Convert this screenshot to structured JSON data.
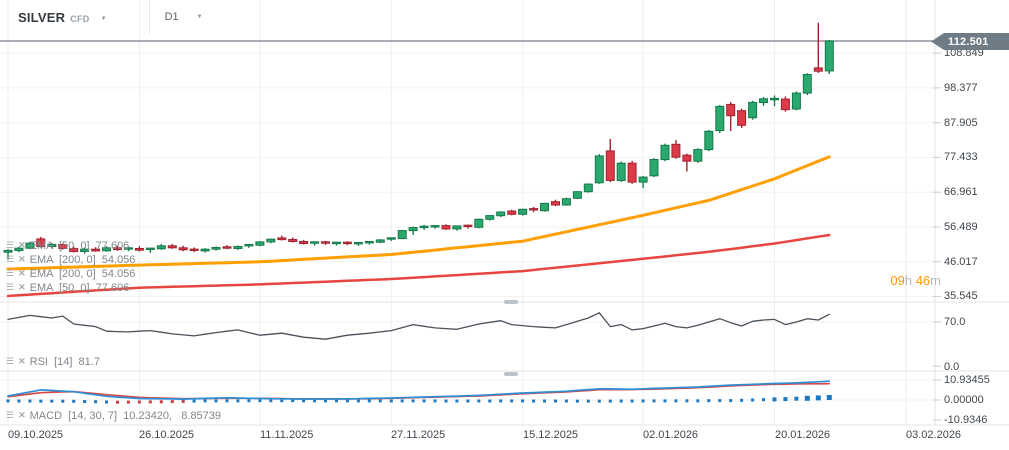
{
  "header": {
    "symbol": "SILVER",
    "market_type": "CFD",
    "timeframe": "D1"
  },
  "main_panel": {
    "indicator_rows": [
      "EMA  [50, 0]  77.606",
      "EMA  [200, 0]  54.056",
      "EMA  [200, 0]  54.056",
      "EMA  [50, 0]  77.606"
    ],
    "countdown": {
      "value1": "09",
      "unit1": "h",
      "value2": "46",
      "unit2": "m"
    },
    "current_price_label": "112.501"
  },
  "rsi_panel": {
    "label": "RSI  [14]  81.7",
    "axis_labels": [
      "70.0",
      "0.0"
    ]
  },
  "macd_panel": {
    "label": "MACD  [14, 30, 7]  10.23420,   8.85739",
    "axis_labels": [
      "10.93455",
      "0.00000",
      "-10.9346"
    ]
  },
  "price_axis_labels": [
    "108.849",
    "98.377",
    "87.905",
    "77.433",
    "66.961",
    "56.489",
    "46.017",
    "35.545"
  ],
  "time_axis_labels": [
    "09.10.2025",
    "26.10.2025",
    "11.11.2025",
    "27.11.2025",
    "15.12.2025",
    "02.01.2026",
    "20.01.2026",
    "03.02.2026"
  ],
  "colors": {
    "background": "#ffffff",
    "bull_fill": "#2aa86d",
    "bull_stroke": "#15794a",
    "bear_fill": "#dc3a48",
    "bear_stroke": "#a3222f",
    "ema50_line": "#ff9f00",
    "ema200_line": "#e64540",
    "rsi_line": "#49525a",
    "macd_line": "#2f8fd5",
    "macd_signal": "#d94848",
    "hist_blue": "#1d78c2",
    "hist_red": "#cc4040",
    "current_price_line": "#8b949b",
    "badge_bg": "#6f7b85",
    "grid": "#f0f2f4",
    "grid_vertical": "#edeff1",
    "separator": "#e2e5e7",
    "tick_dash": "#c9ced2"
  },
  "chart_data": {
    "type": "candlestick",
    "title": "SILVER CFD D1",
    "current_price": 112.501,
    "price_ticks": [
      108.849,
      98.377,
      87.905,
      77.433,
      66.961,
      56.489,
      46.017,
      35.545
    ],
    "gridline_indices": [
      0,
      12,
      23,
      35,
      47,
      58,
      70,
      82
    ],
    "candles": [
      [
        48.9,
        49.8,
        46.6,
        49.4
      ],
      [
        49.4,
        50.5,
        48.9,
        50.1
      ],
      [
        50.1,
        52.0,
        49.8,
        51.6
      ],
      [
        52.9,
        53.5,
        50.3,
        50.6
      ],
      [
        50.6,
        51.7,
        50.0,
        51.2
      ],
      [
        51.2,
        51.6,
        49.7,
        50.0
      ],
      [
        50.0,
        50.6,
        48.8,
        49.1
      ],
      [
        49.1,
        50.3,
        48.5,
        49.8
      ],
      [
        49.8,
        50.4,
        49.0,
        49.3
      ],
      [
        49.3,
        50.7,
        49.0,
        50.2
      ],
      [
        50.2,
        50.9,
        49.3,
        49.7
      ],
      [
        49.7,
        50.5,
        49.2,
        50.0
      ],
      [
        50.0,
        50.7,
        49.1,
        49.5
      ],
      [
        49.5,
        50.1,
        48.7,
        49.9
      ],
      [
        49.9,
        51.3,
        49.6,
        50.8
      ],
      [
        50.8,
        51.4,
        49.9,
        50.2
      ],
      [
        50.2,
        50.8,
        49.2,
        49.6
      ],
      [
        49.6,
        50.3,
        48.9,
        49.3
      ],
      [
        49.3,
        50.1,
        48.8,
        49.8
      ],
      [
        49.8,
        50.6,
        49.4,
        50.3
      ],
      [
        50.3,
        51.0,
        49.8,
        50.0
      ],
      [
        50.0,
        50.9,
        49.6,
        50.6
      ],
      [
        50.6,
        51.3,
        50.2,
        51.0
      ],
      [
        51.0,
        52.2,
        50.7,
        52.0
      ],
      [
        52.0,
        53.0,
        51.6,
        52.8
      ],
      [
        53.2,
        53.9,
        52.4,
        52.7
      ],
      [
        52.7,
        53.3,
        51.8,
        52.1
      ],
      [
        52.1,
        52.6,
        51.2,
        51.5
      ],
      [
        51.5,
        52.0,
        50.9,
        51.8
      ],
      [
        51.8,
        52.3,
        51.1,
        51.4
      ],
      [
        51.4,
        52.0,
        50.9,
        51.7
      ],
      [
        51.7,
        52.2,
        51.0,
        51.3
      ],
      [
        51.3,
        51.9,
        50.8,
        51.6
      ],
      [
        51.6,
        52.1,
        51.2,
        51.9
      ],
      [
        51.9,
        52.8,
        51.6,
        52.6
      ],
      [
        52.6,
        53.2,
        52.3,
        53.0
      ],
      [
        53.0,
        55.6,
        52.8,
        55.4
      ],
      [
        55.4,
        56.6,
        54.1,
        56.3
      ],
      [
        56.3,
        57.1,
        55.6,
        56.5
      ],
      [
        56.5,
        57.0,
        56.0,
        56.7
      ],
      [
        56.9,
        57.3,
        55.6,
        55.9
      ],
      [
        55.9,
        56.9,
        55.4,
        56.8
      ],
      [
        56.8,
        57.2,
        56.0,
        56.4
      ],
      [
        56.4,
        59.0,
        56.1,
        58.8
      ],
      [
        58.8,
        60.1,
        58.4,
        59.9
      ],
      [
        59.9,
        61.2,
        59.5,
        61.0
      ],
      [
        61.3,
        61.7,
        60.0,
        60.3
      ],
      [
        60.3,
        62.0,
        59.9,
        61.8
      ],
      [
        61.8,
        62.5,
        60.9,
        61.4
      ],
      [
        61.4,
        63.8,
        61.1,
        63.6
      ],
      [
        64.1,
        64.7,
        62.8,
        63.1
      ],
      [
        63.1,
        65.3,
        62.9,
        65.0
      ],
      [
        65.1,
        67.3,
        64.9,
        67.1
      ],
      [
        67.1,
        69.6,
        66.8,
        69.4
      ],
      [
        69.8,
        78.4,
        69.5,
        77.9
      ],
      [
        79.4,
        83.0,
        70.0,
        70.5
      ],
      [
        70.5,
        76.2,
        70.1,
        75.7
      ],
      [
        75.7,
        76.4,
        69.5,
        70.0
      ],
      [
        70.0,
        71.8,
        68.2,
        71.5
      ],
      [
        71.9,
        77.2,
        71.5,
        76.8
      ],
      [
        76.8,
        81.6,
        76.3,
        81.1
      ],
      [
        81.4,
        82.7,
        77.0,
        77.5
      ],
      [
        78.1,
        78.6,
        73.2,
        76.3
      ],
      [
        76.3,
        80.2,
        75.8,
        79.8
      ],
      [
        79.8,
        85.7,
        79.3,
        85.3
      ],
      [
        85.5,
        93.2,
        84.8,
        92.8
      ],
      [
        93.4,
        94.1,
        85.4,
        90.0
      ],
      [
        91.5,
        92.1,
        86.3,
        87.1
      ],
      [
        89.4,
        94.5,
        88.8,
        94.0
      ],
      [
        94.0,
        95.6,
        93.0,
        95.1
      ],
      [
        94.6,
        96.1,
        92.9,
        95.0
      ],
      [
        95.0,
        95.8,
        91.2,
        91.8
      ],
      [
        92.0,
        97.3,
        91.6,
        96.8
      ],
      [
        96.8,
        102.8,
        96.2,
        102.4
      ],
      [
        104.4,
        118.0,
        102.9,
        103.4
      ],
      [
        103.5,
        112.8,
        102.6,
        112.501
      ]
    ],
    "ema50": {
      "period": 50,
      "last": 77.606,
      "anchors": [
        [
          0,
          43.8
        ],
        [
          12,
          45.0
        ],
        [
          23,
          46.0
        ],
        [
          35,
          48.2
        ],
        [
          47,
          52.2
        ],
        [
          58,
          60.0
        ],
        [
          64,
          64.5
        ],
        [
          70,
          71.0
        ],
        [
          75,
          77.606
        ]
      ]
    },
    "ema200": {
      "period": 200,
      "last": 54.056,
      "anchors": [
        [
          0,
          35.7
        ],
        [
          12,
          38.2
        ],
        [
          23,
          39.2
        ],
        [
          35,
          40.8
        ],
        [
          47,
          43.2
        ],
        [
          58,
          46.9
        ],
        [
          64,
          49.0
        ],
        [
          70,
          51.5
        ],
        [
          75,
          54.056
        ]
      ]
    },
    "rsi": {
      "period": 14,
      "last": 81.7,
      "ticks": [
        70.0,
        0.0
      ],
      "anchors": [
        [
          0,
          74
        ],
        [
          2,
          80
        ],
        [
          4,
          76
        ],
        [
          5,
          79
        ],
        [
          6,
          67
        ],
        [
          8,
          63
        ],
        [
          9,
          56
        ],
        [
          11,
          55
        ],
        [
          13,
          57
        ],
        [
          15,
          52
        ],
        [
          17,
          49
        ],
        [
          19,
          54
        ],
        [
          21,
          58
        ],
        [
          23,
          50
        ],
        [
          25,
          53
        ],
        [
          27,
          47
        ],
        [
          29,
          44
        ],
        [
          31,
          50
        ],
        [
          33,
          53
        ],
        [
          35,
          57
        ],
        [
          37,
          66
        ],
        [
          39,
          61
        ],
        [
          41,
          59
        ],
        [
          43,
          67
        ],
        [
          45,
          72
        ],
        [
          46,
          66
        ],
        [
          48,
          63
        ],
        [
          50,
          61
        ],
        [
          51,
          66
        ],
        [
          53,
          76
        ],
        [
          54,
          84
        ],
        [
          55,
          63
        ],
        [
          56,
          66
        ],
        [
          57,
          58
        ],
        [
          58,
          60
        ],
        [
          60,
          68
        ],
        [
          61,
          63
        ],
        [
          62,
          61
        ],
        [
          63,
          65
        ],
        [
          64,
          70
        ],
        [
          65,
          75
        ],
        [
          66,
          69
        ],
        [
          67,
          64
        ],
        [
          68,
          71
        ],
        [
          69,
          73
        ],
        [
          70,
          74
        ],
        [
          71,
          66
        ],
        [
          72,
          70
        ],
        [
          73,
          75
        ],
        [
          74,
          73
        ],
        [
          75,
          81.7
        ]
      ]
    },
    "macd": {
      "params": [
        14,
        30,
        7
      ],
      "last_macd": 10.2342,
      "last_signal": 8.85739,
      "ticks": [
        10.93455,
        0.0,
        -10.9346
      ],
      "macd_anchors": [
        [
          0,
          2.2
        ],
        [
          3,
          5.5
        ],
        [
          6,
          4.5
        ],
        [
          9,
          2.0
        ],
        [
          12,
          0.8
        ],
        [
          16,
          0.5
        ],
        [
          20,
          1.2
        ],
        [
          23,
          0.8
        ],
        [
          27,
          0.5
        ],
        [
          31,
          0.6
        ],
        [
          35,
          1.1
        ],
        [
          39,
          1.8
        ],
        [
          43,
          2.5
        ],
        [
          47,
          3.8
        ],
        [
          51,
          4.8
        ],
        [
          54,
          6.1
        ],
        [
          57,
          5.9
        ],
        [
          60,
          6.5
        ],
        [
          63,
          7.1
        ],
        [
          66,
          8.1
        ],
        [
          69,
          8.8
        ],
        [
          72,
          9.3
        ],
        [
          75,
          10.234
        ]
      ],
      "signal_anchors": [
        [
          0,
          1.8
        ],
        [
          3,
          4.0
        ],
        [
          6,
          4.6
        ],
        [
          9,
          2.9
        ],
        [
          12,
          1.4
        ],
        [
          16,
          0.7
        ],
        [
          20,
          0.9
        ],
        [
          23,
          0.9
        ],
        [
          27,
          0.6
        ],
        [
          31,
          0.6
        ],
        [
          35,
          0.9
        ],
        [
          39,
          1.6
        ],
        [
          43,
          2.2
        ],
        [
          47,
          3.4
        ],
        [
          51,
          4.4
        ],
        [
          54,
          5.6
        ],
        [
          57,
          5.7
        ],
        [
          60,
          6.1
        ],
        [
          63,
          6.7
        ],
        [
          66,
          7.7
        ],
        [
          69,
          8.4
        ],
        [
          72,
          8.8
        ],
        [
          75,
          8.857
        ]
      ],
      "hist_anchors": [
        [
          0,
          -0.5
        ],
        [
          4,
          -0.6
        ],
        [
          7,
          -0.8
        ],
        [
          10,
          -1.2
        ],
        [
          14,
          -1.0
        ],
        [
          18,
          -0.5
        ],
        [
          22,
          -0.4
        ],
        [
          26,
          -0.4
        ],
        [
          30,
          -0.45
        ],
        [
          34,
          -0.5
        ],
        [
          38,
          -0.5
        ],
        [
          42,
          -0.55
        ],
        [
          46,
          -0.5
        ],
        [
          50,
          -0.55
        ],
        [
          54,
          -0.6
        ],
        [
          58,
          -0.5
        ],
        [
          62,
          -0.45
        ],
        [
          66,
          -0.3
        ],
        [
          70,
          0.3
        ],
        [
          73,
          0.9
        ],
        [
          75,
          1.37
        ]
      ],
      "hist_red_index_range": [
        10,
        16
      ]
    }
  }
}
